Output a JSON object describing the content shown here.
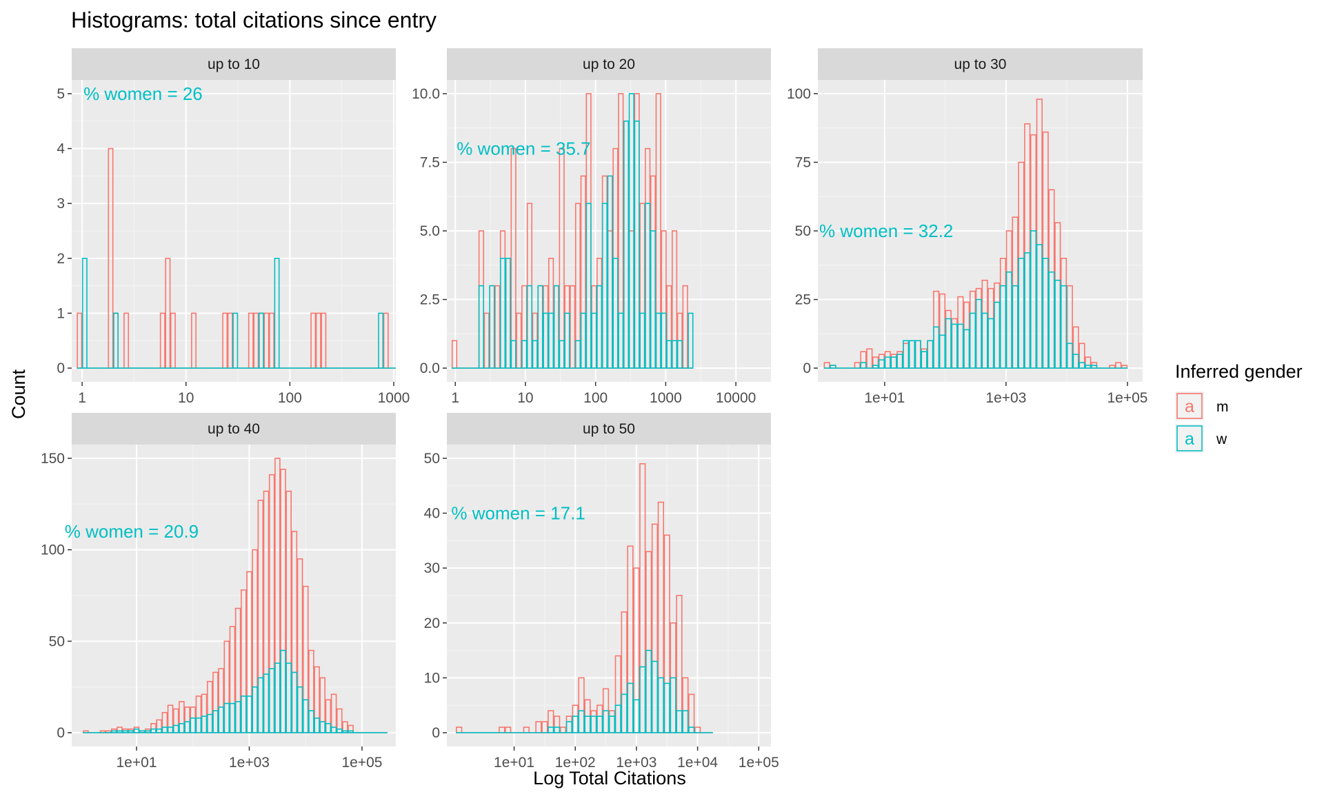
{
  "chart_data": {
    "type": "bar",
    "title": "Histograms: total citations since entry",
    "xlabel": "Log Total Citations",
    "ylabel": "Count",
    "legend": {
      "title": "Inferred gender",
      "position": "right",
      "entries": [
        {
          "key": "m",
          "glyph": "a",
          "color": "#F8766D"
        },
        {
          "key": "w",
          "glyph": "a",
          "color": "#00BFC4"
        }
      ]
    },
    "x_scale": "log10",
    "grid": true,
    "panels": [
      {
        "strip": "up to 10",
        "annotation": "% women = 26",
        "annotation_pos": [
          0.0,
          5.0
        ],
        "xlim_log10": [
          -0.1,
          3.02
        ],
        "ylim": [
          -0.25,
          5.25
        ],
        "x_ticks": [
          {
            "v": 0,
            "label": "1"
          },
          {
            "v": 1,
            "label": "10"
          },
          {
            "v": 2,
            "label": "100"
          },
          {
            "v": 3,
            "label": "1000"
          }
        ],
        "y_ticks": [
          {
            "v": 0,
            "label": "0"
          },
          {
            "v": 1,
            "label": "1"
          },
          {
            "v": 2,
            "label": "2"
          },
          {
            "v": 3,
            "label": "3"
          },
          {
            "v": 4,
            "label": "4"
          },
          {
            "v": 5,
            "label": "5"
          }
        ],
        "bin_start_log10": -0.05,
        "bin_width_log10": 0.05,
        "m": [
          1,
          0,
          0,
          0,
          0,
          0,
          4,
          1,
          0,
          1,
          0,
          0,
          0,
          0,
          0,
          0,
          1,
          2,
          1,
          0,
          0,
          0,
          1,
          0,
          0,
          0,
          0,
          0,
          1,
          1,
          0,
          0,
          0,
          1,
          1,
          1,
          1,
          1,
          0,
          0,
          0,
          0,
          0,
          0,
          0,
          1,
          1,
          1,
          0,
          0,
          0,
          0,
          0,
          0,
          0,
          0,
          0,
          0,
          0,
          1,
          0,
          0,
          1,
          0
        ],
        "w": [
          0,
          2,
          0,
          0,
          0,
          0,
          0,
          1,
          0,
          0,
          0,
          0,
          0,
          0,
          0,
          0,
          0,
          0,
          0,
          0,
          0,
          0,
          0,
          0,
          0,
          0,
          0,
          0,
          0,
          0,
          1,
          0,
          0,
          0,
          0,
          1,
          0,
          0,
          2,
          0,
          0,
          0,
          0,
          0,
          0,
          0,
          0,
          0,
          0,
          0,
          0,
          0,
          0,
          0,
          0,
          0,
          0,
          0,
          1,
          0,
          0,
          0,
          0,
          0
        ]
      },
      {
        "strip": "up to 20",
        "annotation": "% women = 35.7",
        "annotation_pos": [
          0.0,
          8.0
        ],
        "xlim_log10": [
          -0.12,
          4.5
        ],
        "ylim": [
          -0.5,
          10.5
        ],
        "x_ticks": [
          {
            "v": 0,
            "label": "1"
          },
          {
            "v": 1,
            "label": "10"
          },
          {
            "v": 2,
            "label": "100"
          },
          {
            "v": 3,
            "label": "1000"
          },
          {
            "v": 4,
            "label": "10000"
          }
        ],
        "y_ticks": [
          {
            "v": 0,
            "label": "0.0"
          },
          {
            "v": 2.5,
            "label": "2.5"
          },
          {
            "v": 5,
            "label": "5.0"
          },
          {
            "v": 7.5,
            "label": "7.5"
          },
          {
            "v": 10,
            "label": "10.0"
          }
        ],
        "bin_start_log10": -0.05,
        "bin_width_log10": 0.0765,
        "m": [
          1,
          0,
          0,
          0,
          0,
          5,
          2,
          3,
          3,
          5,
          4,
          8,
          2,
          3,
          6,
          2,
          3,
          3,
          4,
          3,
          8,
          3,
          3,
          6,
          7,
          10,
          3,
          4,
          7,
          5,
          8,
          10,
          9,
          5,
          10,
          6,
          8,
          7,
          10,
          5,
          3,
          5,
          2,
          3,
          0
        ],
        "w": [
          0,
          0,
          0,
          0,
          0,
          3,
          0,
          3,
          0,
          4,
          4,
          1,
          0,
          1,
          3,
          1,
          3,
          2,
          2,
          3,
          1,
          2,
          0,
          1,
          2,
          6,
          2,
          3,
          6,
          7,
          4,
          2,
          9,
          10,
          9,
          2,
          6,
          5,
          2,
          2,
          1,
          1,
          1,
          0,
          2
        ],
        "m_override": "see script"
      },
      {
        "strip": "up to 30",
        "annotation": "% women = 32.2",
        "annotation_pos": [
          -0.1,
          50
        ],
        "xlim_log10": [
          -0.1,
          5.25
        ],
        "ylim": [
          -5,
          105
        ],
        "x_ticks": [
          {
            "v": 1,
            "label": "1e+01"
          },
          {
            "v": 3,
            "label": "1e+03"
          },
          {
            "v": 5,
            "label": "1e+05"
          }
        ],
        "y_ticks": [
          {
            "v": 0,
            "label": "0"
          },
          {
            "v": 25,
            "label": "25"
          },
          {
            "v": 50,
            "label": "50"
          },
          {
            "v": 75,
            "label": "75"
          },
          {
            "v": 100,
            "label": "100"
          }
        ],
        "bin_start_log10": 0.0,
        "bin_width_log10": 0.1,
        "m": [
          2,
          1,
          0,
          0,
          0,
          2,
          6,
          7,
          4,
          5,
          6,
          5,
          6,
          9,
          10,
          10,
          7,
          10,
          28,
          27,
          21,
          18,
          26,
          24,
          28,
          29,
          32,
          29,
          31,
          40,
          50,
          55,
          75,
          89,
          85,
          98,
          86,
          65,
          53,
          40,
          30,
          15,
          9,
          4,
          2,
          0,
          0,
          1,
          2,
          1
        ],
        "w": [
          0,
          1,
          0,
          0,
          0,
          0,
          2,
          0,
          1,
          3,
          4,
          4,
          5,
          10,
          10,
          10,
          6,
          10,
          15,
          12,
          18,
          16,
          16,
          14,
          20,
          25,
          20,
          18,
          24,
          30,
          35,
          30,
          40,
          42,
          50,
          45,
          40,
          35,
          32,
          30,
          9,
          5,
          2,
          1,
          1,
          0,
          0,
          0,
          0,
          0
        ]
      },
      {
        "strip": "up to 40",
        "annotation": "% women = 20.9",
        "annotation_pos": [
          -0.3,
          110
        ],
        "xlim_log10": [
          -0.15,
          5.6
        ],
        "ylim": [
          -7.5,
          157.5
        ],
        "x_ticks": [
          {
            "v": 1,
            "label": "1e+01"
          },
          {
            "v": 3,
            "label": "1e+03"
          },
          {
            "v": 5,
            "label": "1e+05"
          }
        ],
        "y_ticks": [
          {
            "v": 0,
            "label": "0"
          },
          {
            "v": 50,
            "label": "50"
          },
          {
            "v": 100,
            "label": "100"
          },
          {
            "v": 150,
            "label": "150"
          }
        ],
        "bin_start_log10": 0.05,
        "bin_width_log10": 0.1,
        "m": [
          1,
          0,
          0,
          1,
          1,
          2,
          3,
          2,
          2,
          3,
          1,
          2,
          5,
          7,
          11,
          15,
          13,
          17,
          14,
          14,
          20,
          21,
          28,
          33,
          35,
          50,
          58,
          68,
          78,
          88,
          100,
          127,
          132,
          141,
          150,
          144,
          132,
          110,
          95,
          80,
          45,
          36,
          30,
          18,
          21,
          13,
          6,
          4,
          0,
          0,
          0,
          0,
          0,
          0
        ],
        "w": [
          0,
          0,
          0,
          0,
          0,
          1,
          1,
          1,
          1,
          2,
          1,
          1,
          2,
          2,
          3,
          3,
          4,
          5,
          6,
          8,
          8,
          9,
          10,
          12,
          14,
          16,
          16,
          17,
          20,
          20,
          25,
          30,
          32,
          35,
          38,
          45,
          38,
          33,
          25,
          18,
          12,
          8,
          6,
          5,
          3,
          2,
          1,
          1,
          0,
          0,
          0,
          0,
          0,
          0
        ]
      },
      {
        "strip": "up to 50",
        "annotation": "% women = 17.1",
        "annotation_pos": [
          -0.05,
          40
        ],
        "xlim_log10": [
          -0.1,
          5.2
        ],
        "ylim": [
          -2.5,
          52.5
        ],
        "x_ticks": [
          {
            "v": 1,
            "label": "1e+01"
          },
          {
            "v": 2,
            "label": "1e+02"
          },
          {
            "v": 3,
            "label": "1e+03"
          },
          {
            "v": 4,
            "label": "1e+04"
          },
          {
            "v": 5,
            "label": "1e+05"
          }
        ],
        "y_ticks": [
          {
            "v": 0,
            "label": "0"
          },
          {
            "v": 10,
            "label": "10"
          },
          {
            "v": 20,
            "label": "20"
          },
          {
            "v": 30,
            "label": "30"
          },
          {
            "v": 40,
            "label": "40"
          },
          {
            "v": 50,
            "label": "50"
          }
        ],
        "bin_start_log10": 0.05,
        "bin_width_log10": 0.1,
        "m": [
          1,
          0,
          0,
          0,
          0,
          0,
          0,
          1,
          1,
          0,
          0,
          1,
          0,
          2,
          2,
          4,
          3,
          1,
          3,
          5,
          10,
          6,
          4,
          5,
          8,
          4,
          14,
          22,
          34,
          30,
          49,
          33,
          38,
          42,
          36,
          20,
          25,
          10,
          7,
          1,
          0,
          0
        ],
        "w": [
          0,
          0,
          0,
          0,
          0,
          0,
          0,
          0,
          0,
          0,
          0,
          0,
          0,
          0,
          0,
          1,
          1,
          0,
          2,
          3,
          4,
          3,
          3,
          3,
          4,
          3,
          5,
          7,
          9,
          6,
          12,
          15,
          13,
          10,
          9,
          10,
          4,
          4,
          1,
          0,
          0,
          0
        ]
      }
    ]
  }
}
